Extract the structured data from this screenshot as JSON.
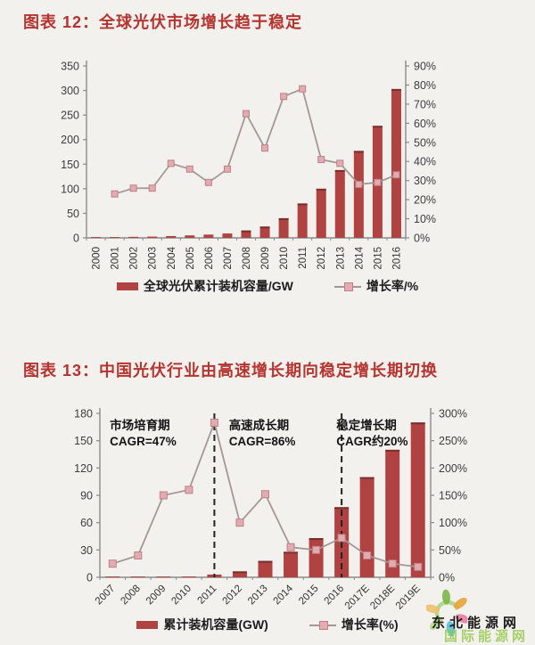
{
  "page": {
    "background": "#f3f1ee"
  },
  "colors": {
    "title_red": "#b5342f",
    "bar": "#b04341",
    "bar_cap": "#7a2f2d",
    "line": "#a39893",
    "marker_fill": "#e3abb0",
    "marker_stroke": "#bb8289",
    "axis_line": "#8a8a8a",
    "axis_text": "#3d3d3d",
    "divider": "#222222",
    "annotation_text": "#141414",
    "watermark_green": "#8cc63f"
  },
  "chart_data": [
    {
      "type": "bar+line",
      "title": "图表 12：全球光伏市场增长趋于稳定",
      "categories": [
        "2000",
        "2001",
        "2002",
        "2003",
        "2004",
        "2005",
        "2006",
        "2007",
        "2008",
        "2009",
        "2010",
        "2011",
        "2012",
        "2013",
        "2014",
        "2015",
        "2016"
      ],
      "series": [
        {
          "name": "全球光伏累计装机容量/GW",
          "type": "bar",
          "axis": "left",
          "values": [
            1.3,
            1.6,
            2.1,
            2.6,
            3.7,
            5.1,
            6.7,
            9,
            15,
            23,
            40,
            70,
            100,
            138,
            177,
            228,
            303
          ]
        },
        {
          "name": "增长率/%",
          "type": "line",
          "axis": "right",
          "values": [
            null,
            23,
            26,
            26,
            39,
            36,
            29,
            36,
            65,
            47,
            74,
            78,
            41,
            39,
            28,
            29,
            33
          ]
        }
      ],
      "left_axis": {
        "min": 0,
        "max": 350,
        "step": 50,
        "suffix": ""
      },
      "right_axis": {
        "min": 0,
        "max": 90,
        "step": 10,
        "suffix": "%"
      },
      "x_label_rotation": -90,
      "grid": false,
      "legend_position": "bottom",
      "divider_indices": [],
      "annotations": []
    },
    {
      "type": "bar+line",
      "title": "图表 13：中国光伏行业由高速增长期向稳定增长期切换",
      "categories": [
        "2007",
        "2008",
        "2009",
        "2010",
        "2011",
        "2012",
        "2013",
        "2014",
        "2015",
        "2016",
        "2017E",
        "2018E",
        "2019E"
      ],
      "series": [
        {
          "name": "累计装机容量(GW)",
          "type": "bar",
          "axis": "left",
          "values": [
            0.1,
            0.2,
            0.4,
            0.9,
            3,
            6.5,
            18,
            28,
            43,
            77,
            110,
            140,
            170
          ]
        },
        {
          "name": "增长率(%)",
          "type": "line",
          "axis": "right",
          "values": [
            25,
            40,
            150,
            160,
            283,
            100,
            152,
            55,
            50,
            72,
            40,
            25,
            19
          ]
        }
      ],
      "left_axis": {
        "min": 0,
        "max": 180,
        "step": 30,
        "suffix": ""
      },
      "right_axis": {
        "min": 0,
        "max": 300,
        "step": 50,
        "suffix": "%"
      },
      "x_label_rotation": -45,
      "grid": false,
      "legend_position": "bottom",
      "divider_indices": [
        4,
        9
      ],
      "annotations": [
        {
          "lines": [
            "市场培育期",
            "CAGR=47%"
          ],
          "x_frac": 0.03
        },
        {
          "lines": [
            "高速成长期",
            "CAGR=86%"
          ],
          "x_frac": 0.39
        },
        {
          "lines": [
            "稳定增长期",
            "CAGR约20%"
          ],
          "x_frac": 0.715
        }
      ]
    }
  ],
  "watermark": {
    "primary": "东北能源网",
    "secondary": "国际能源网",
    "petal_colors": [
      "#7ab648",
      "#e8a33d",
      "#e87fa0",
      "#5bc0de",
      "#b7d98a",
      "#f0c06a"
    ]
  }
}
